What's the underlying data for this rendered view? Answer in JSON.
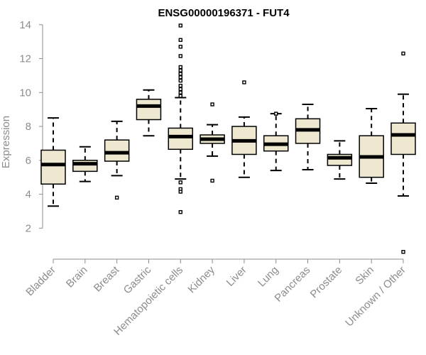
{
  "chart_data": {
    "type": "boxplot",
    "title": "ENSG00000196371 - FUT4",
    "ylabel": "Expression",
    "xlabel": "",
    "ylim": [
      0.8,
      14.2
    ],
    "yticks": [
      2,
      4,
      6,
      8,
      10,
      12,
      14
    ],
    "box_color": "#eee8d0",
    "categories": [
      "Bladder",
      "Brain",
      "Breast",
      "Gastric",
      "Hematopoietic cells",
      "Kidney",
      "Liver",
      "Lung",
      "Pancreas",
      "Prostate",
      "Skin",
      "Unknown / Other"
    ],
    "boxes": [
      {
        "min": 3.3,
        "q1": 4.6,
        "median": 5.75,
        "q3": 6.6,
        "max": 8.5,
        "outliers": []
      },
      {
        "min": 4.75,
        "q1": 5.35,
        "median": 5.8,
        "q3": 6.0,
        "max": 6.8,
        "outliers": []
      },
      {
        "min": 5.1,
        "q1": 5.95,
        "median": 6.45,
        "q3": 7.2,
        "max": 8.3,
        "outliers": [
          3.8
        ]
      },
      {
        "min": 7.45,
        "q1": 8.4,
        "median": 9.2,
        "q3": 9.6,
        "max": 10.15,
        "outliers": []
      },
      {
        "min": 4.9,
        "q1": 6.65,
        "median": 7.4,
        "q3": 7.9,
        "max": 9.7,
        "outliers": [
          13.95,
          13.1,
          12.7,
          12.15,
          11.5,
          11.3,
          11.1,
          10.9,
          10.7,
          10.4,
          10.2,
          10.0,
          9.8,
          4.7,
          4.3,
          4.15,
          2.95
        ]
      },
      {
        "min": 6.25,
        "q1": 7.0,
        "median": 7.25,
        "q3": 7.5,
        "max": 8.1,
        "outliers": [
          9.3,
          4.8
        ]
      },
      {
        "min": 5.0,
        "q1": 6.35,
        "median": 7.15,
        "q3": 8.0,
        "max": 8.55,
        "outliers": [
          10.6
        ]
      },
      {
        "min": 5.4,
        "q1": 6.55,
        "median": 6.95,
        "q3": 7.45,
        "max": 8.75,
        "outliers": [
          8.75
        ]
      },
      {
        "min": 5.45,
        "q1": 7.0,
        "median": 7.8,
        "q3": 8.45,
        "max": 9.3,
        "outliers": []
      },
      {
        "min": 4.9,
        "q1": 5.7,
        "median": 6.15,
        "q3": 6.35,
        "max": 7.15,
        "outliers": []
      },
      {
        "min": 4.65,
        "q1": 5.0,
        "median": 6.2,
        "q3": 7.45,
        "max": 9.05,
        "outliers": []
      },
      {
        "min": 3.9,
        "q1": 6.35,
        "median": 7.5,
        "q3": 8.2,
        "max": 9.9,
        "outliers": [
          12.3,
          0.6
        ]
      }
    ]
  }
}
